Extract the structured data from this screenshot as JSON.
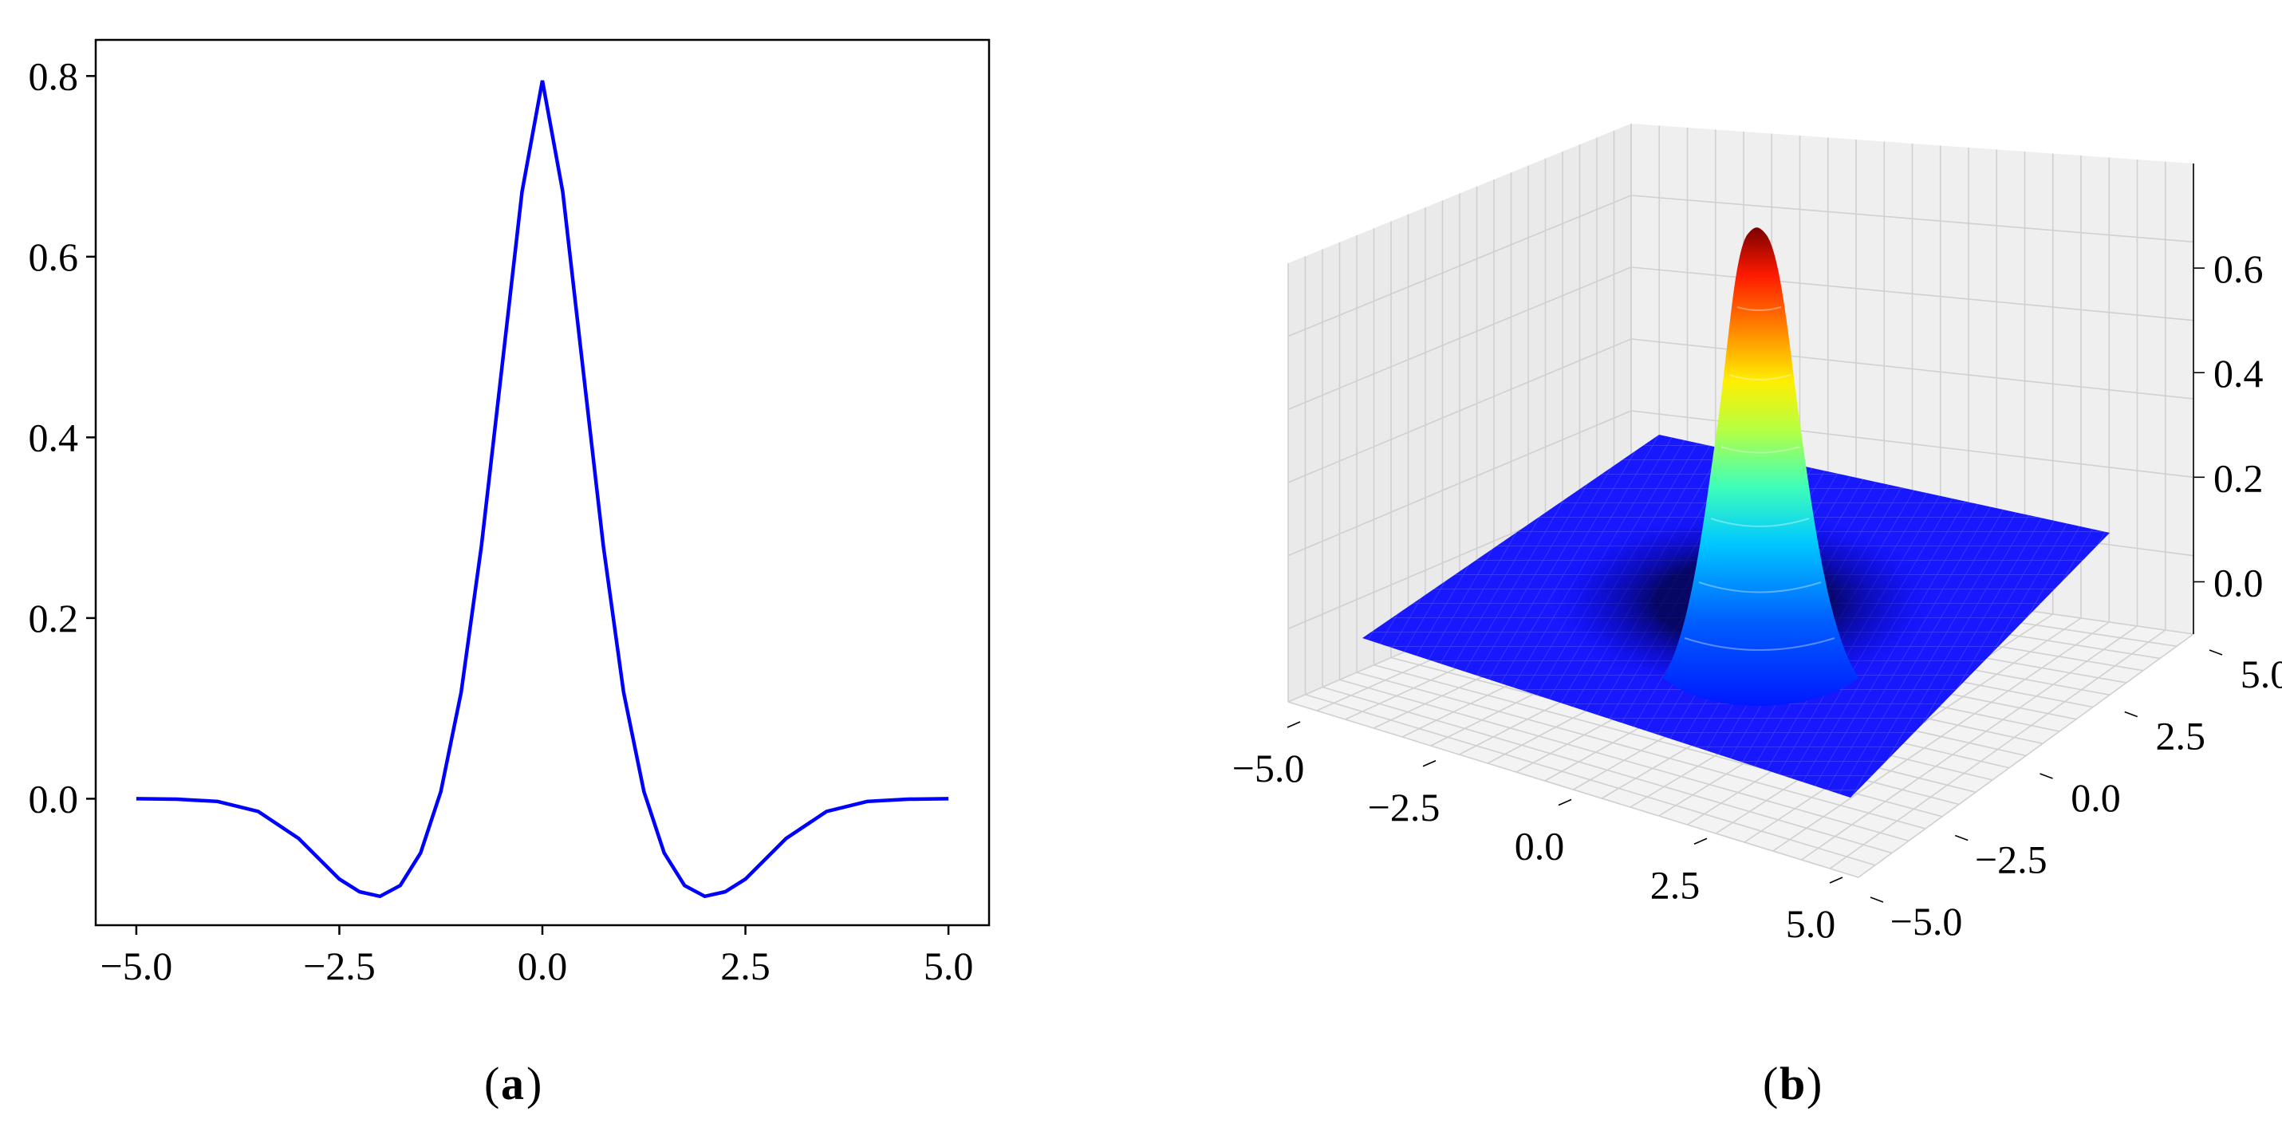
{
  "chart_data": [
    {
      "type": "line",
      "panel_label": "a",
      "title": "",
      "xlabel": "",
      "ylabel": "",
      "xlim": [
        -5.5,
        5.5
      ],
      "ylim": [
        -0.14,
        0.84
      ],
      "grid": false,
      "x_ticks": [
        "−5.0",
        "−2.5",
        "0.0",
        "2.5",
        "5.0"
      ],
      "y_ticks": [
        "0.0",
        "0.2",
        "0.4",
        "0.6",
        "0.8"
      ],
      "series": [
        {
          "color": "#0000ff",
          "x": [
            -5.0,
            -4.5,
            -4.0,
            -3.5,
            -3.0,
            -2.5,
            -2.25,
            -2.0,
            -1.75,
            -1.5,
            -1.25,
            -1.0,
            -0.75,
            -0.5,
            -0.25,
            0.0,
            0.25,
            0.5,
            0.75,
            1.0,
            1.25,
            1.5,
            1.75,
            2.0,
            2.25,
            2.5,
            3.0,
            3.5,
            4.0,
            4.5,
            5.0
          ],
          "y": [
            0.0,
            -0.0005,
            -0.003,
            -0.014,
            -0.044,
            -0.089,
            -0.103,
            -0.108,
            -0.096,
            -0.06,
            0.008,
            0.118,
            0.28,
            0.476,
            0.672,
            0.795,
            0.672,
            0.476,
            0.28,
            0.118,
            0.008,
            -0.06,
            -0.096,
            -0.108,
            -0.103,
            -0.089,
            -0.044,
            -0.014,
            -0.003,
            -0.0005,
            0.0
          ]
        }
      ]
    },
    {
      "type": "surface",
      "panel_label": "b",
      "title": "",
      "colormap": "jet",
      "x_ticks": [
        "−5.0",
        "−2.5",
        "0.0",
        "2.5",
        "5.0"
      ],
      "y_ticks": [
        "−5.0",
        "−2.5",
        "0.0",
        "2.5",
        "5.0"
      ],
      "z_ticks": [
        "0.0",
        "0.2",
        "0.4",
        "0.6"
      ],
      "xlim": [
        -5.0,
        5.0
      ],
      "ylim": [
        -5.0,
        5.0
      ],
      "zlim": [
        -0.1,
        0.8
      ],
      "peak": {
        "x": 0.0,
        "y": 0.0,
        "z": 0.72
      },
      "grid": true
    }
  ],
  "captions": {
    "a": "a",
    "b": "b"
  }
}
